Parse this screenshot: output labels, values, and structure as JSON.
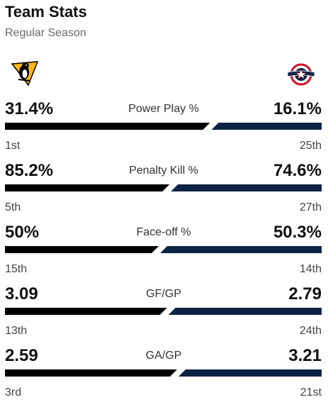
{
  "header": {
    "title": "Team Stats",
    "subtitle": "Regular Season"
  },
  "teams": {
    "left": {
      "logo": "penguins-logo",
      "color": "#000000"
    },
    "right": {
      "logo": "blue-jackets-logo",
      "color": "#0c2344"
    }
  },
  "stats": [
    {
      "label": "Power Play %",
      "left_value": "31.4%",
      "right_value": "16.1%",
      "left_rank": "1st",
      "right_rank": "25th",
      "left_share": 0.661
    },
    {
      "label": "Penalty Kill %",
      "left_value": "85.2%",
      "right_value": "74.6%",
      "left_rank": "5th",
      "right_rank": "27th",
      "left_share": 0.533
    },
    {
      "label": "Face-off %",
      "left_value": "50%",
      "right_value": "50.3%",
      "left_rank": "15th",
      "right_rank": "14th",
      "left_share": 0.499
    },
    {
      "label": "GF/GP",
      "left_value": "3.09",
      "right_value": "2.79",
      "left_rank": "13th",
      "right_rank": "24th",
      "left_share": 0.525
    },
    {
      "label": "GA/GP",
      "left_value": "2.59",
      "right_value": "3.21",
      "left_rank": "3rd",
      "right_rank": "21st",
      "left_share": 0.557
    }
  ]
}
